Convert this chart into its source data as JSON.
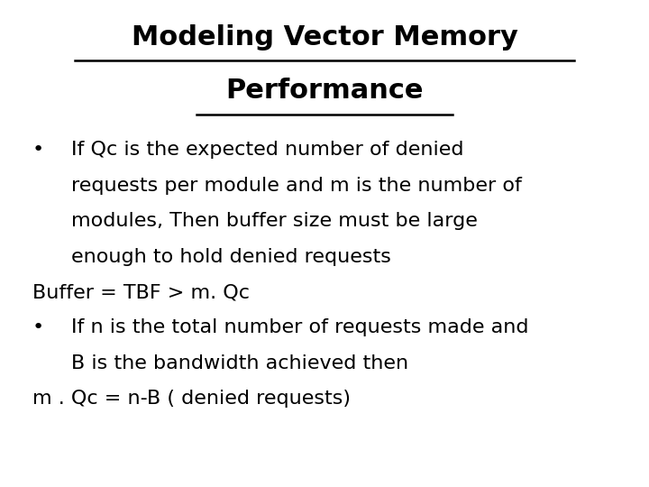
{
  "title_line1": "Modeling Vector Memory",
  "title_line2": "Performance",
  "title_fontsize": 22,
  "title_fontweight": "bold",
  "body_fontsize": 16,
  "background_color": "#ffffff",
  "text_color": "#000000",
  "bullet1_lines": [
    "If Qc is the expected number of denied",
    "requests per module and m is the number of",
    "modules, Then buffer size must be large",
    "enough to hold denied requests"
  ],
  "formula1": "Buffer = TBF > m. Qc",
  "bullet2_lines": [
    "If n is the total number of requests made and",
    "B is the bandwidth achieved then"
  ],
  "formula2": "m . Qc = n-B ( denied requests)"
}
